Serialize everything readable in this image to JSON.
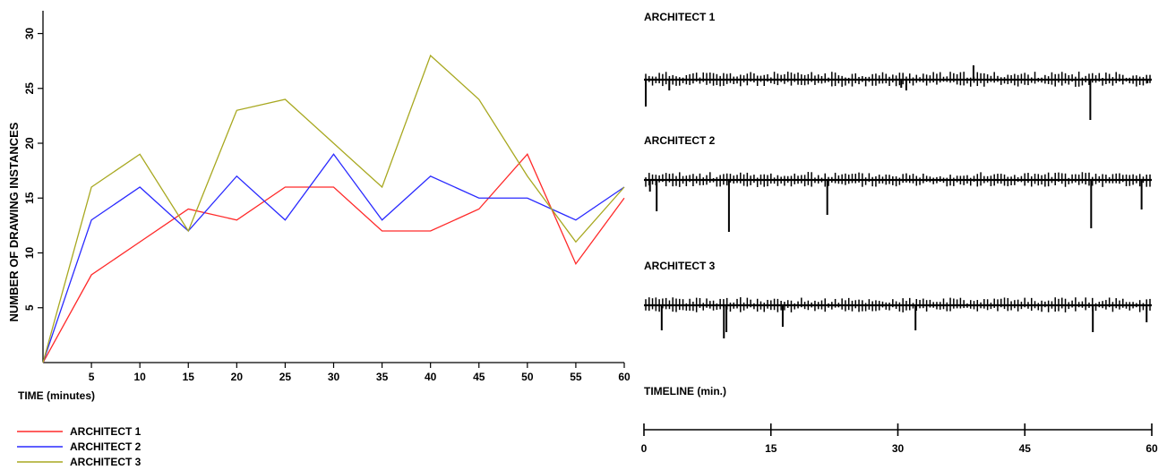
{
  "chart_data": [
    {
      "type": "line",
      "xlabel": "TIME (minutes)",
      "ylabel": "NUMBER OF DRAWING INSTANCES",
      "x": [
        0,
        5,
        10,
        15,
        20,
        25,
        30,
        35,
        40,
        45,
        50,
        55,
        60
      ],
      "xlim": [
        0,
        60
      ],
      "ylim": [
        0,
        33
      ],
      "x_ticks": [
        5,
        10,
        15,
        20,
        25,
        30,
        35,
        40,
        45,
        50,
        55,
        60
      ],
      "y_ticks": [
        5,
        10,
        15,
        20,
        25,
        30
      ],
      "grid": false,
      "legend_position": "bottom-left",
      "series": [
        {
          "name": "ARCHITECT 1",
          "color": "#ff2a2a",
          "values": [
            0,
            8,
            11,
            14,
            13,
            16,
            16,
            12,
            12,
            14,
            19,
            9,
            15
          ]
        },
        {
          "name": "ARCHITECT 2",
          "color": "#2a2aff",
          "values": [
            0,
            13,
            16,
            12,
            17,
            13,
            19,
            13,
            17,
            15,
            15,
            13,
            16
          ]
        },
        {
          "name": "ARCHITECT 3",
          "color": "#a8a820",
          "values": [
            0,
            16,
            19,
            12,
            23,
            24,
            20,
            16,
            28,
            24,
            17,
            11,
            16
          ]
        }
      ]
    },
    {
      "type": "timeline",
      "xlabel": "TIMELINE (min.)",
      "xlim": [
        0,
        60
      ],
      "x_ticks": [
        0,
        15,
        30,
        45,
        60
      ],
      "tracks": [
        {
          "name": "ARCHITECT 1"
        },
        {
          "name": "ARCHITECT 2"
        },
        {
          "name": "ARCHITECT 3"
        }
      ]
    }
  ]
}
